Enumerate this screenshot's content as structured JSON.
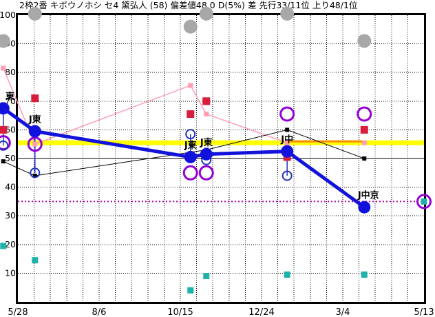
{
  "chart_data": {
    "type": "line+scatter",
    "title": "2枠2番 キボウノホシ セ4 黛弘人 (58) 偏差値48.0 D(5%) 差 先行33/11位 上り48/1位",
    "x_tick_labels": [
      "5/28",
      "8/6",
      "10/15",
      "12/24",
      "3/4",
      "5/13"
    ],
    "y_tick_labels": [
      "100",
      "90",
      "80",
      "70",
      "60",
      "50",
      "40",
      "30",
      "20",
      "10"
    ],
    "ylim": [
      0,
      100
    ],
    "grid": {
      "x_minor_divisions": 25,
      "x_major_every": 5,
      "y_step": 10,
      "solid_y_gridline": 50
    },
    "reference_lines": {
      "yellow_line_value": 55.5,
      "magenta_dotted_value": 35,
      "orange_segment": {
        "value": 55.5,
        "from_col": 4,
        "to_col": 5
      }
    },
    "series_legend": {
      "blue": "main deviation line (filled blue dots, track labels)",
      "blue_open": "open blue circles",
      "purple": "open purple circles",
      "gray": "large gray dots",
      "red": "red squares",
      "teal": "teal squares",
      "black": "thin black line with small black squares",
      "pink": "thin pink line with small pink squares"
    },
    "pink_line_end_col": 4,
    "columns": [
      {
        "label": "東",
        "x": -0.036,
        "blue": 67.5,
        "blue_open": 54.5,
        "purple": 55.5,
        "gray": 91,
        "red": 60,
        "teal": 19.5,
        "black": 49,
        "pink": 81.5
      },
      {
        "label": "J東",
        "x": 0.042,
        "blue": 59.5,
        "blue_open": 45,
        "purple": 55,
        "gray": 100.5,
        "red": 71,
        "teal": 14.5,
        "black": 44,
        "pink": 55
      },
      {
        "label": "J東",
        "x": 0.425,
        "blue": 50.5,
        "blue_open": 58.5,
        "purple": 45,
        "gray": 96,
        "red": 65.5,
        "teal": 4,
        "black": null,
        "pink": 75.5
      },
      {
        "label": "J東",
        "x": 0.464,
        "blue": 51.5,
        "blue_open": 49.5,
        "purple": 45,
        "gray": 100.5,
        "red": 70,
        "teal": 9,
        "black": 53,
        "pink": 65.5
      },
      {
        "label": "J中",
        "x": 0.663,
        "blue": 52.5,
        "blue_open": 44,
        "purple": 65.5,
        "gray": 100.5,
        "red": 50.5,
        "teal": 9.5,
        "black": 60,
        "pink": 55.5
      },
      {
        "label": "J中京",
        "x": 0.853,
        "blue": 33,
        "blue_open": null,
        "purple": 65.5,
        "gray": 91,
        "red": 60,
        "teal": 9.5,
        "black": 50,
        "pink": 55.5
      },
      {
        "label": "",
        "x": 1.0,
        "blue": null,
        "blue_open": null,
        "purple": 35,
        "gray": null,
        "red": null,
        "teal": 35,
        "black": null,
        "pink": null
      }
    ]
  },
  "colors": {
    "blue": "#1212dd",
    "blue_open": "#2233bb",
    "purple": "#9400d3",
    "gray": "#a8a8a8",
    "red": "#d81e3c",
    "teal": "#20b2aa",
    "pink": "#ff9db4",
    "yellow": "#ffff00",
    "orange": "#ff8c00",
    "magenta": "#b400b4",
    "black": "#000000"
  }
}
